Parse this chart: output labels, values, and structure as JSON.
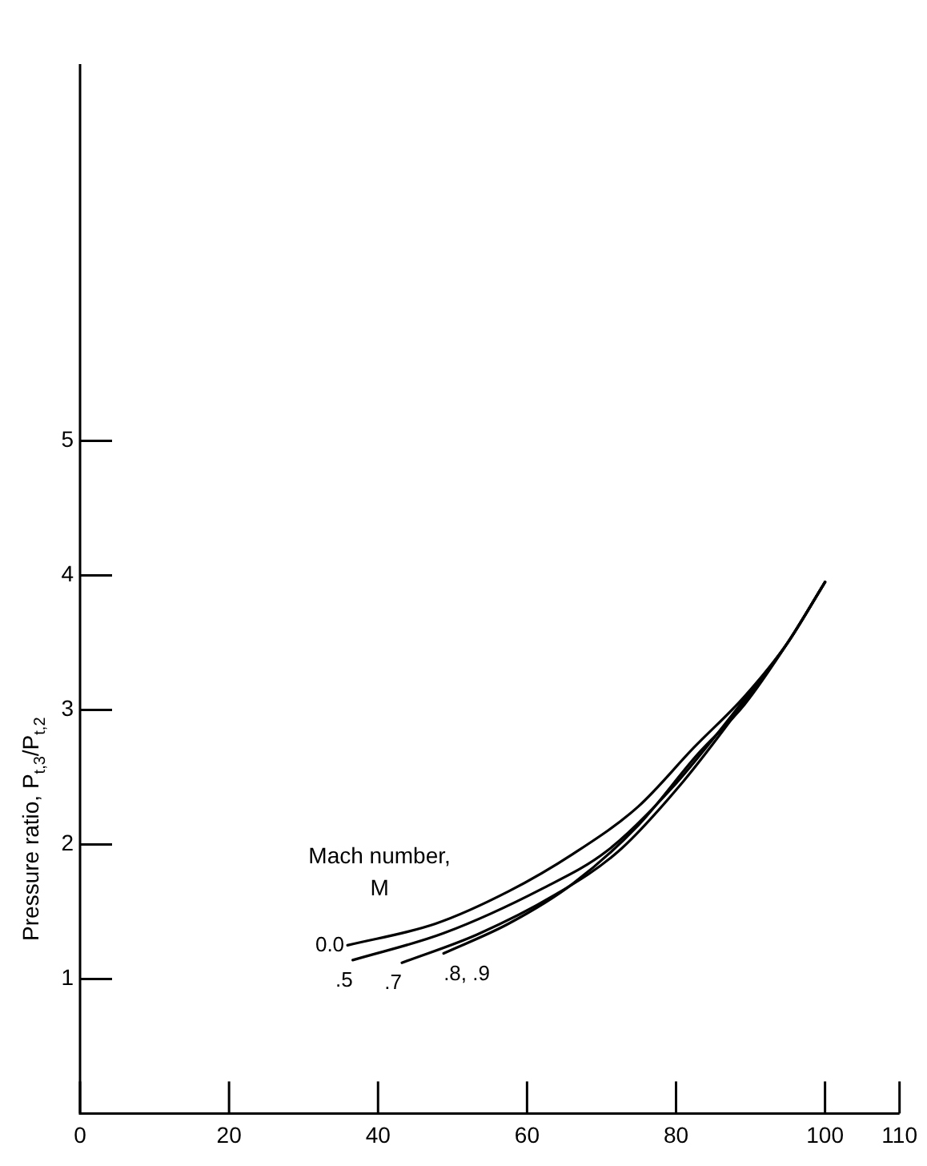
{
  "chart_data": {
    "type": "line",
    "ylabel": "Pressure ratio, P$_{t,3}$/P$_{t,2}$",
    "legend_title": "Mach number,\nM",
    "xlim": [
      0,
      110
    ],
    "xticks": [
      0,
      20,
      40,
      60,
      80,
      100,
      110
    ],
    "ylim": [
      0,
      7.8
    ],
    "yticks": [
      1,
      2,
      3,
      4,
      5
    ],
    "grid": false,
    "legend": false,
    "marker": "none",
    "line_style": "solid",
    "series": [
      {
        "name": "0.0",
        "color": "#000000",
        "x": [
          35.9,
          47.7,
          57.5,
          66.2,
          74.9,
          82.4,
          89.2,
          95,
          100
        ],
        "values": [
          1.25,
          1.41,
          1.65,
          1.93,
          2.28,
          2.72,
          3.1,
          3.5,
          3.95
        ]
      },
      {
        "name": ".5",
        "color": "#000000",
        "x": [
          36.6,
          48.8,
          62,
          70.7,
          79.3,
          89.2,
          95,
          100
        ],
        "values": [
          1.14,
          1.34,
          1.67,
          1.95,
          2.41,
          3.08,
          3.5,
          3.95
        ]
      },
      {
        "name": ".7",
        "color": "#000000",
        "x": [
          43.2,
          53.3,
          63.6,
          72.3,
          81,
          89.2,
          95,
          100
        ],
        "values": [
          1.12,
          1.33,
          1.62,
          1.95,
          2.47,
          3.06,
          3.5,
          3.95
        ]
      },
      {
        "name": ".8, .9",
        "color": "#000000",
        "x": [
          48.8,
          57.5,
          66.2,
          74.9,
          82.9,
          89.2,
          95,
          100
        ],
        "values": [
          1.19,
          1.41,
          1.71,
          2.14,
          2.67,
          3.04,
          3.5,
          3.95
        ]
      }
    ]
  }
}
